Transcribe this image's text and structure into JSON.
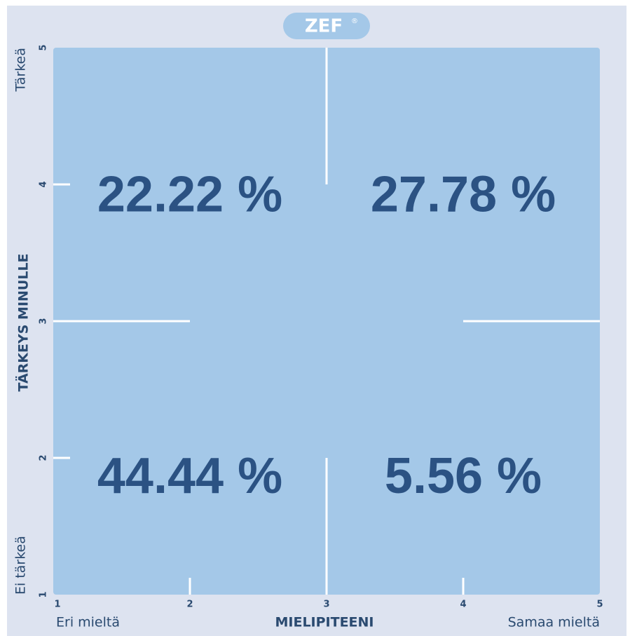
{
  "chart_data": {
    "type": "quadrant",
    "logo": "ZEF",
    "logo_mark": "®",
    "x_label": "MIELIPITEENI",
    "y_label": "TÄRKEYS MINULLE",
    "x_low_label": "Eri mieltä",
    "x_high_label": "Samaa mieltä",
    "y_low_label": "Ei tärkeä",
    "y_high_label": "Tärkeä",
    "xlim": [
      1,
      5
    ],
    "ylim": [
      1,
      5
    ],
    "xticks": [
      1,
      2,
      3,
      4,
      5
    ],
    "yticks": [
      1,
      2,
      3,
      4,
      5
    ],
    "values": [
      22.22,
      27.78,
      44.44,
      5.56
    ],
    "value_labels": [
      "22.22 %",
      "27.78 %",
      "44.44 %",
      "5.56 %"
    ],
    "color": "#a4c8e8"
  }
}
